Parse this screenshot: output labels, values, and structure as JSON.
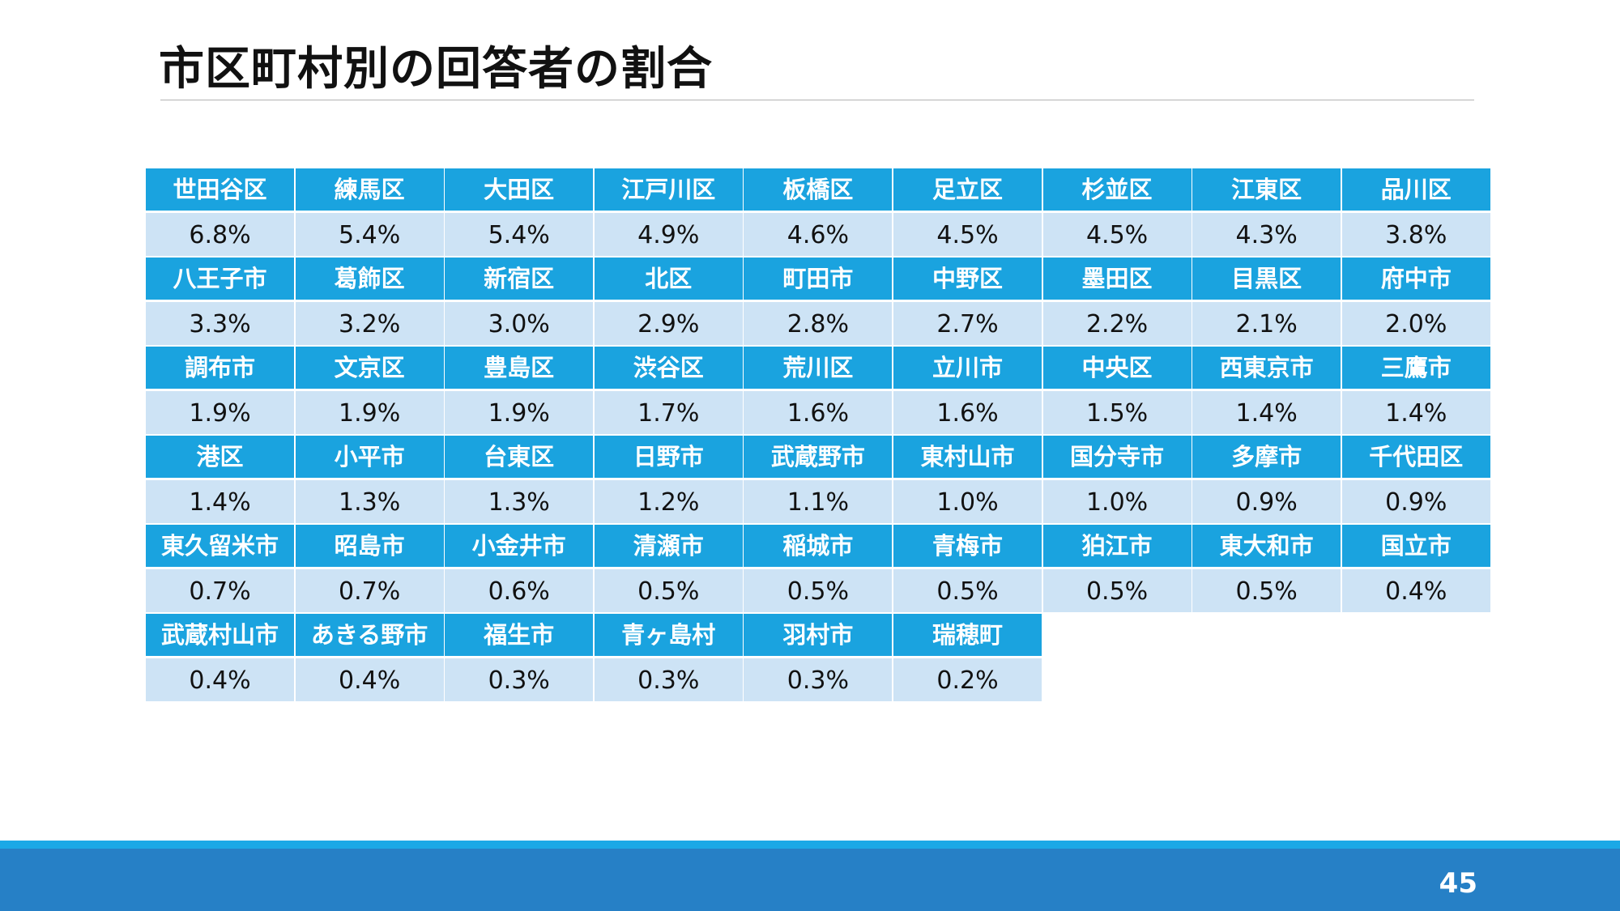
{
  "title": "市区町村別の回答者の割合",
  "colors": {
    "header_bg": "#1aa3df",
    "value_bg": "#cde3f5",
    "footer_bar": "#2680c6",
    "footer_strip": "#1ba8e6"
  },
  "table": {
    "rows": [
      {
        "names": [
          "世田谷区",
          "練馬区",
          "大田区",
          "江戸川区",
          "板橋区",
          "足立区",
          "杉並区",
          "江東区",
          "品川区"
        ],
        "values": [
          "6.8%",
          "5.4%",
          "5.4%",
          "4.9%",
          "4.6%",
          "4.5%",
          "4.5%",
          "4.3%",
          "3.8%"
        ]
      },
      {
        "names": [
          "八王子市",
          "葛飾区",
          "新宿区",
          "北区",
          "町田市",
          "中野区",
          "墨田区",
          "目黒区",
          "府中市"
        ],
        "values": [
          "3.3%",
          "3.2%",
          "3.0%",
          "2.9%",
          "2.8%",
          "2.7%",
          "2.2%",
          "2.1%",
          "2.0%"
        ]
      },
      {
        "names": [
          "調布市",
          "文京区",
          "豊島区",
          "渋谷区",
          "荒川区",
          "立川市",
          "中央区",
          "西東京市",
          "三鷹市"
        ],
        "values": [
          "1.9%",
          "1.9%",
          "1.9%",
          "1.7%",
          "1.6%",
          "1.6%",
          "1.5%",
          "1.4%",
          "1.4%"
        ]
      },
      {
        "names": [
          "港区",
          "小平市",
          "台東区",
          "日野市",
          "武蔵野市",
          "東村山市",
          "国分寺市",
          "多摩市",
          "千代田区"
        ],
        "values": [
          "1.4%",
          "1.3%",
          "1.3%",
          "1.2%",
          "1.1%",
          "1.0%",
          "1.0%",
          "0.9%",
          "0.9%"
        ]
      },
      {
        "names": [
          "東久留米市",
          "昭島市",
          "小金井市",
          "清瀬市",
          "稲城市",
          "青梅市",
          "狛江市",
          "東大和市",
          "国立市"
        ],
        "values": [
          "0.7%",
          "0.7%",
          "0.6%",
          "0.5%",
          "0.5%",
          "0.5%",
          "0.5%",
          "0.5%",
          "0.4%"
        ]
      },
      {
        "names": [
          "武蔵村山市",
          "あきる野市",
          "福生市",
          "青ヶ島村",
          "羽村市",
          "瑞穂町"
        ],
        "values": [
          "0.4%",
          "0.4%",
          "0.3%",
          "0.3%",
          "0.3%",
          "0.2%"
        ]
      }
    ]
  },
  "page_number": "45"
}
